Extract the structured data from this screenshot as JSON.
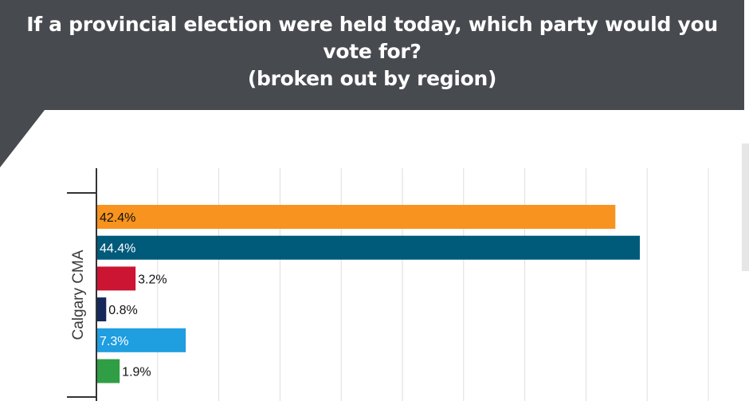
{
  "header": {
    "title_line1": "If a provincial election were held today, which party would you",
    "title_line2": "vote for?",
    "subtitle": "(broken out by region)",
    "background_color": "#474a4f"
  },
  "chart_data": {
    "type": "bar",
    "orientation": "horizontal",
    "title": "If a provincial election were held today, which party would you vote for?",
    "subtitle": "(broken out by region)",
    "xlabel": "",
    "ylabel": "",
    "xlim": [
      0,
      50
    ],
    "grid": true,
    "categories": [
      "Calgary CMA"
    ],
    "series": [
      {
        "values": [
          42.4
        ],
        "label": "42.4%",
        "color": "#f7931e",
        "label_inside": true
      },
      {
        "values": [
          44.4
        ],
        "label": "44.4%",
        "color": "#005a7a",
        "label_inside": true
      },
      {
        "values": [
          3.2
        ],
        "label": "3.2%",
        "color": "#cc1433",
        "label_inside": false
      },
      {
        "values": [
          0.8
        ],
        "label": "0.8%",
        "color": "#14285a",
        "label_inside": false
      },
      {
        "values": [
          7.3
        ],
        "label": "7.3%",
        "color": "#1f9ee0",
        "label_inside": true
      },
      {
        "values": [
          1.9
        ],
        "label": "1.9%",
        "color": "#2f9e44",
        "label_inside": false
      }
    ]
  }
}
